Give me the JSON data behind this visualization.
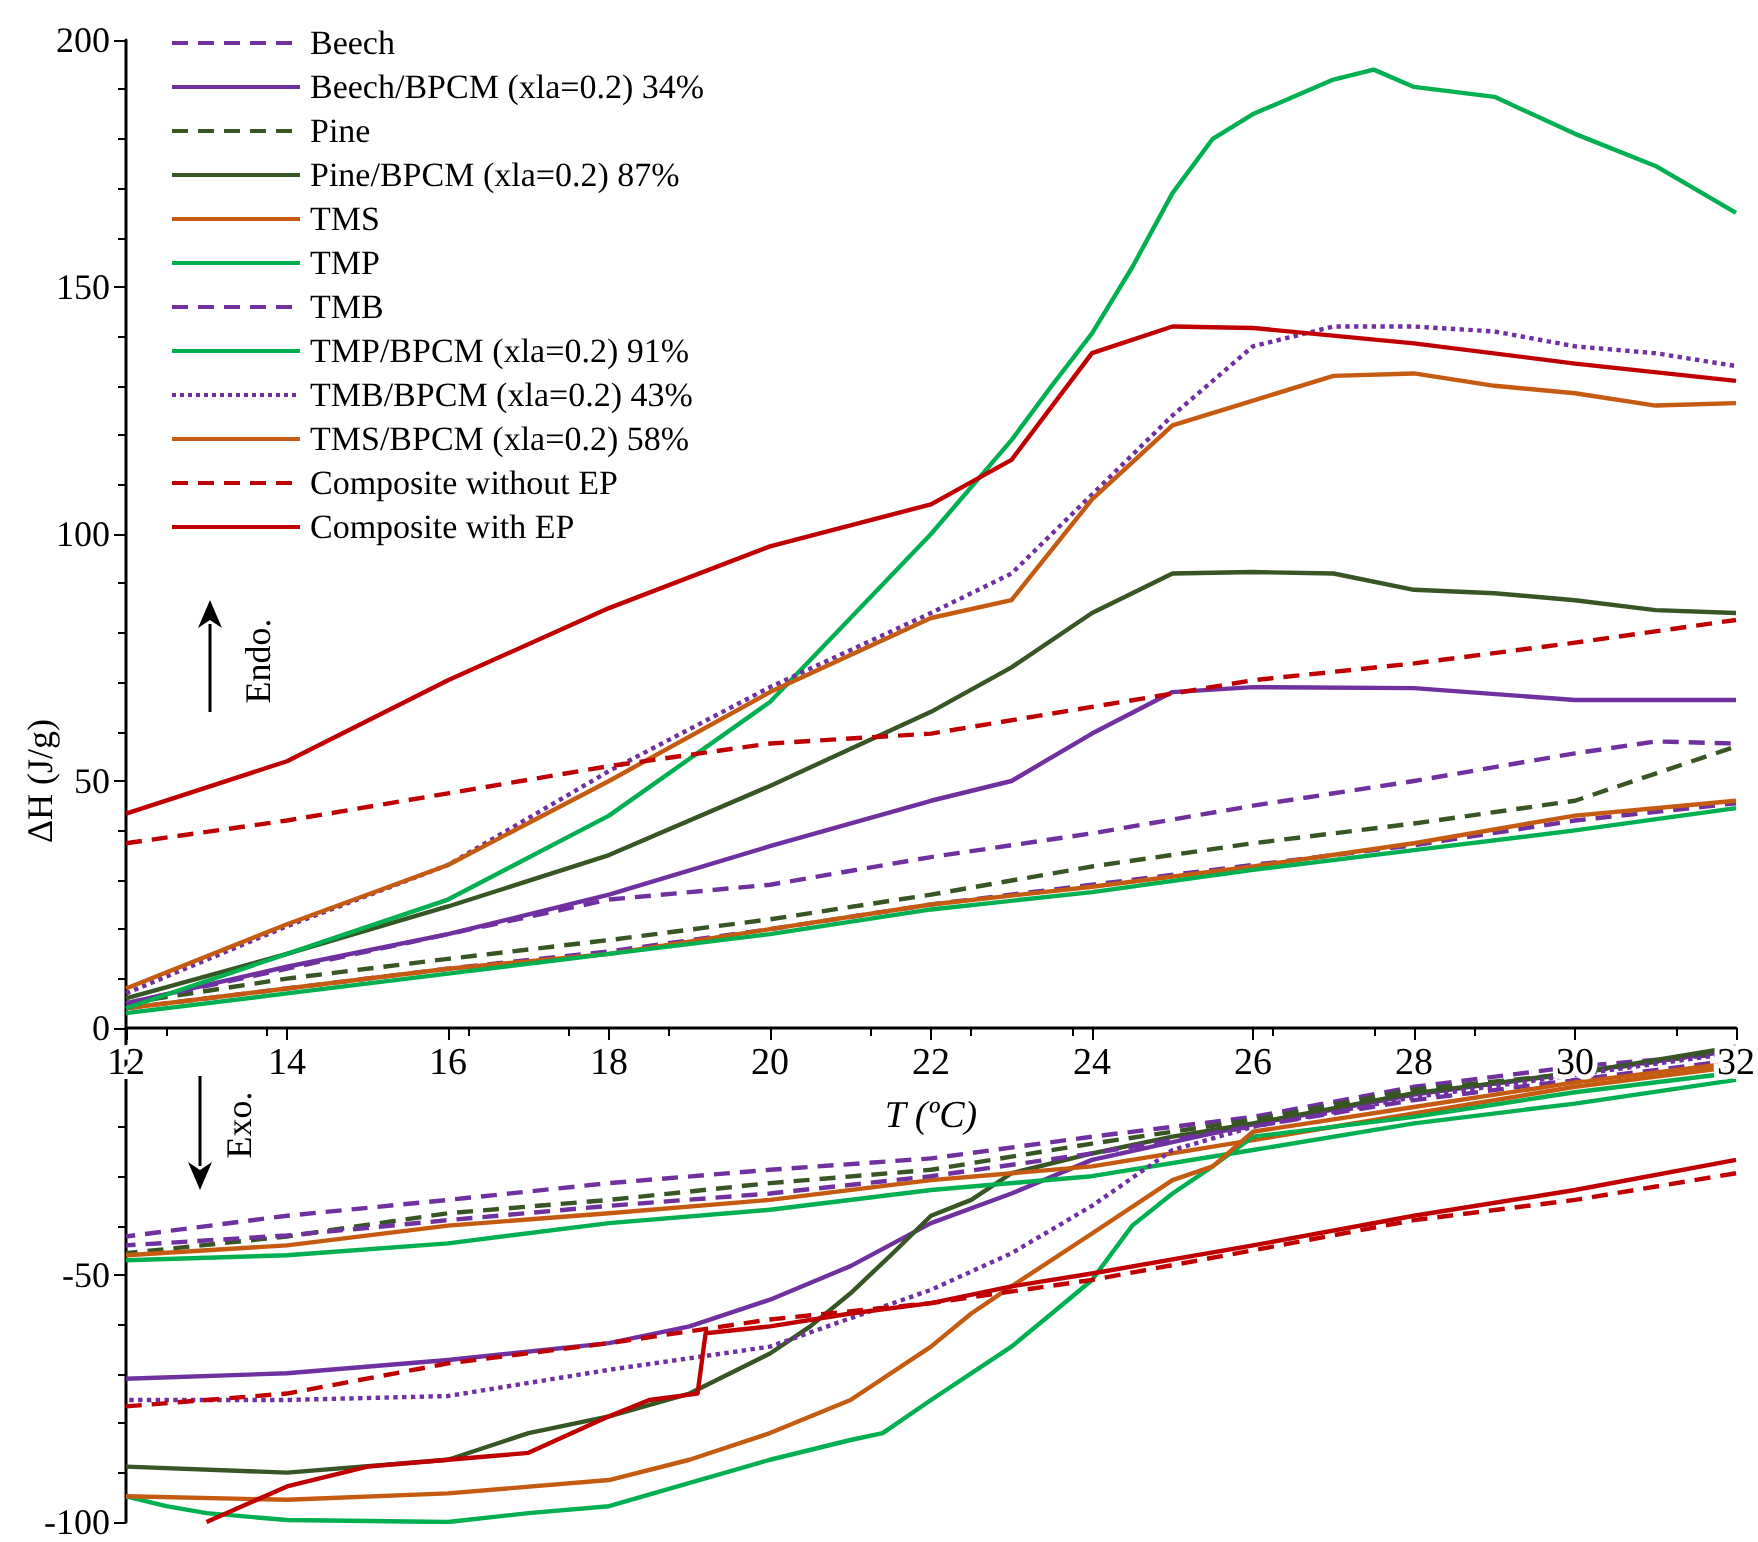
{
  "chart_data": {
    "type": "line",
    "xlabel": "T (ºC)",
    "ylabel": "ΔH (J/g)",
    "xlim": [
      12,
      32
    ],
    "xticks": [
      12,
      14,
      16,
      18,
      20,
      22,
      24,
      26,
      28,
      30,
      32
    ],
    "ylim": [
      -100,
      200
    ],
    "yticks": [
      -100,
      -50,
      0,
      50,
      100,
      150,
      200
    ],
    "grid": false,
    "legend": "top left",
    "marker": "none",
    "annotations": [
      "Endo.",
      "Exo."
    ],
    "series": [
      {
        "name": "Beech",
        "color": "#7030a0",
        "line_style": "dashed",
        "x": [
          12,
          14,
          16,
          18,
          20,
          22,
          24,
          26,
          28,
          30,
          32
        ],
        "values": [
          4,
          8,
          12,
          15.5,
          20,
          25,
          29,
          33,
          37,
          42,
          45.5
        ]
      },
      {
        "color": "#7030a0",
        "line_style": "dashed",
        "x": [
          32,
          30,
          28,
          26,
          24,
          22,
          20,
          18,
          16,
          14,
          12
        ],
        "values": [
          -5.1,
          -7.8,
          -11.9,
          -18,
          -22,
          -26.4,
          -28.7,
          -31.4,
          -34.8,
          -38,
          -42.2
        ]
      },
      {
        "name": "Beech/BPCM (xla=0.2) 34%",
        "color": "#7030a0",
        "line_style": "solid",
        "x": [
          12,
          14,
          16,
          18,
          20,
          22,
          23,
          24,
          25,
          26,
          28,
          30,
          32
        ],
        "values": [
          5,
          12.4,
          19,
          27,
          36.8,
          46,
          50,
          59.6,
          68,
          69,
          68.8,
          66.4,
          66.4
        ]
      },
      {
        "color": "#7030a0",
        "line_style": "solid",
        "x": [
          32,
          30,
          28,
          26,
          24,
          23,
          22,
          21,
          20,
          19,
          18,
          16,
          14,
          12
        ],
        "values": [
          -4.5,
          -9,
          -13.5,
          -19.5,
          -26.7,
          -33.5,
          -39.5,
          -48.2,
          -55,
          -60.4,
          -63.8,
          -67.2,
          -69.9,
          -71
        ]
      },
      {
        "name": "Pine",
        "color": "#375623",
        "line_style": "dashed",
        "x": [
          12,
          14,
          16,
          18,
          20,
          22,
          24,
          26,
          28,
          30,
          31,
          32
        ],
        "values": [
          5,
          10,
          14,
          17.8,
          22,
          27,
          32.7,
          37.4,
          41.4,
          46,
          51.5,
          57
        ]
      },
      {
        "color": "#375623",
        "line_style": "dashed",
        "x": [
          32,
          30,
          28,
          26,
          24,
          22,
          20,
          18,
          16,
          14,
          12
        ],
        "values": [
          -4.5,
          -9.2,
          -12.5,
          -18.6,
          -23.4,
          -28.7,
          -31.4,
          -34.8,
          -37.5,
          -42.2,
          -45.6
        ]
      },
      {
        "name": "Pine/BPCM (xla=0.2) 87%",
        "color": "#375623",
        "line_style": "solid",
        "x": [
          12,
          14,
          16,
          18,
          20,
          22,
          23,
          24,
          25,
          26,
          27,
          28,
          29,
          30,
          31,
          32
        ],
        "values": [
          6,
          15,
          24.6,
          35,
          49,
          64,
          73,
          84,
          92,
          92.3,
          92,
          88.7,
          88,
          86.6,
          84.6,
          84
        ]
      },
      {
        "color": "#375623",
        "line_style": "solid",
        "x": [
          32,
          30,
          28,
          26,
          25,
          24,
          23,
          22.5,
          22,
          21.5,
          21,
          20.5,
          20,
          19,
          18,
          17,
          16,
          14,
          12
        ],
        "values": [
          -3.8,
          -9.2,
          -13.2,
          -19.3,
          -22,
          -25.4,
          -29.4,
          -34.8,
          -38,
          -46,
          -53.7,
          -60.4,
          -65.9,
          -74,
          -78.6,
          -82,
          -87.4,
          -90,
          -88.8
        ]
      },
      {
        "name": "TMS",
        "color": "#c55a11",
        "line_style": "solid",
        "x": [
          12,
          14,
          16,
          18,
          20,
          22,
          24,
          26,
          28,
          30,
          32
        ],
        "values": [
          4,
          8,
          12,
          15,
          20,
          25,
          28.6,
          32.7,
          37.4,
          43,
          46
        ]
      },
      {
        "color": "#c55a11",
        "line_style": "solid",
        "x": [
          32,
          30,
          28,
          26,
          24,
          22,
          20,
          18,
          16,
          14,
          12
        ],
        "values": [
          -7.8,
          -11.9,
          -17.3,
          -22.7,
          -28,
          -30.8,
          -34.8,
          -37.5,
          -40,
          -44,
          -46
        ]
      },
      {
        "name": "TMP",
        "color": "#00b050",
        "line_style": "solid",
        "x": [
          12,
          14,
          16,
          18,
          20,
          22,
          24,
          26,
          28,
          30,
          32
        ],
        "values": [
          3,
          7,
          11,
          15,
          19,
          24,
          27.5,
          32,
          36,
          40,
          44.5
        ]
      },
      {
        "color": "#00b050",
        "line_style": "solid",
        "x": [
          32,
          30,
          28,
          26,
          24,
          22,
          20,
          18,
          16,
          14,
          12
        ],
        "values": [
          -10.5,
          -15.3,
          -19.3,
          -24.7,
          -30,
          -32.8,
          -36.8,
          -39.5,
          -43.6,
          -46,
          -47
        ]
      },
      {
        "name": "TMB",
        "color": "#7030a0",
        "line_style": "dashed",
        "x": [
          12,
          14,
          16,
          18,
          20,
          22,
          24,
          26,
          28,
          30,
          31,
          32
        ],
        "values": [
          5,
          12,
          19,
          26,
          29,
          34.6,
          39.4,
          45,
          50,
          55.6,
          58,
          57.6
        ]
      },
      {
        "color": "#7030a0",
        "line_style": "dashed",
        "x": [
          32,
          30,
          28,
          26,
          24,
          22,
          20,
          18,
          16,
          14,
          12
        ],
        "values": [
          -6.5,
          -10.5,
          -14.6,
          -19.9,
          -25.4,
          -30,
          -33.5,
          -36,
          -38.9,
          -42,
          -44
        ]
      },
      {
        "name": "TMP/BPCM (xla=0.2) 91%",
        "color": "#00b050",
        "line_style": "solid",
        "x": [
          12,
          14,
          16,
          18,
          20,
          22,
          23,
          23.5,
          24,
          24.5,
          25,
          25.5,
          26,
          27,
          27.5,
          28,
          29,
          30,
          31,
          32
        ],
        "values": [
          4,
          15,
          26,
          43,
          66,
          100,
          119,
          130,
          140.6,
          154,
          169,
          180,
          185,
          192,
          194,
          190.5,
          188.5,
          181,
          174.5,
          165
        ]
      },
      {
        "color": "#00b050",
        "line_style": "solid",
        "x": [
          32,
          30,
          28,
          26,
          25.5,
          25,
          24.5,
          24,
          23.5,
          23,
          22,
          21.4,
          21,
          20,
          18,
          17,
          16,
          14,
          13,
          12.5,
          12
        ],
        "values": [
          -9,
          -13,
          -18,
          -22,
          -28,
          -33.5,
          -40,
          -51,
          -57.8,
          -64.5,
          -75.3,
          -82,
          -83.4,
          -87.4,
          -96.8,
          -98.2,
          -100,
          -99.6,
          -98.2,
          -96.8,
          -94.8
        ]
      },
      {
        "name": "TMB/BPCM (xla=0.2) 43%",
        "color": "#7030a0",
        "line_style": "dotted",
        "x": [
          12,
          14,
          16,
          18,
          20,
          22,
          23,
          24,
          25,
          25.5,
          26,
          27,
          28,
          29,
          30,
          31,
          32
        ],
        "values": [
          7,
          20.6,
          33,
          52,
          69,
          84,
          92,
          108,
          124,
          131,
          138,
          142,
          142,
          141,
          138,
          136.6,
          134
        ]
      },
      {
        "color": "#7030a0",
        "line_style": "dotted",
        "x": [
          32,
          30,
          28,
          26,
          25,
          24,
          23,
          22,
          20,
          18,
          16,
          14,
          12
        ],
        "values": [
          -5,
          -9.5,
          -14,
          -20,
          -24.7,
          -36,
          -45.6,
          -53,
          -64.5,
          -69.2,
          -74.5,
          -75.3,
          -75.3
        ]
      },
      {
        "name": "TMS/BPCM (xla=0.2) 58%",
        "color": "#c55a11",
        "line_style": "solid",
        "x": [
          12,
          14,
          16,
          18,
          20,
          22,
          23,
          24,
          25,
          26,
          27,
          28,
          29,
          30,
          31,
          32
        ],
        "values": [
          8,
          21,
          33,
          50,
          68,
          83,
          86.6,
          107,
          122,
          127,
          132,
          132.5,
          130,
          128.5,
          126,
          126.5
        ]
      },
      {
        "color": "#c55a11",
        "line_style": "solid",
        "x": [
          32,
          30,
          28,
          26,
          25.5,
          25,
          24,
          23,
          22.5,
          22,
          21,
          20,
          19,
          18,
          16,
          14,
          12
        ],
        "values": [
          -7,
          -11,
          -16,
          -21,
          -28,
          -30.8,
          -41.6,
          -52.3,
          -57.8,
          -64.5,
          -75.3,
          -82,
          -87.4,
          -91.5,
          -94.2,
          -95.5,
          -94.8
        ]
      },
      {
        "name": "Composite without EP",
        "color": "#c00000",
        "line_style": "dashed",
        "x": [
          12,
          14,
          16,
          18,
          20,
          22,
          24,
          26,
          28,
          30,
          32
        ],
        "values": [
          37.4,
          42,
          47.5,
          53,
          57.6,
          59.6,
          65,
          70.4,
          73.8,
          78,
          82.6
        ]
      },
      {
        "color": "#c00000",
        "line_style": "dashed",
        "x": [
          32,
          30,
          28,
          26,
          24,
          22,
          20,
          18,
          16,
          14,
          12
        ],
        "values": [
          -29.4,
          -34.8,
          -38.9,
          -45,
          -51,
          -55.7,
          -59,
          -63.8,
          -67.9,
          -74,
          -76.6
        ]
      },
      {
        "name": "Composite with EP",
        "color": "#c00000",
        "line_style": "solid",
        "x": [
          12,
          14,
          16,
          18,
          20,
          22,
          23,
          24,
          25,
          26,
          28,
          30,
          32
        ],
        "values": [
          43.4,
          54,
          70.4,
          85,
          97.5,
          106,
          115,
          136.6,
          142,
          141.7,
          138.6,
          134.5,
          131
        ]
      },
      {
        "color": "#c00000",
        "line_style": "solid",
        "x": [
          32,
          30,
          28,
          26,
          24,
          23,
          22,
          21,
          20,
          19.2,
          19.1,
          18.5,
          18,
          17,
          16,
          15,
          14,
          13
        ],
        "values": [
          -26.7,
          -32.8,
          -38,
          -44,
          -49.7,
          -52.3,
          -55.7,
          -57.8,
          -60.4,
          -61.8,
          -74,
          -75.3,
          -78.6,
          -86,
          -87.4,
          -88.8,
          -92.8,
          -100
        ]
      }
    ]
  }
}
